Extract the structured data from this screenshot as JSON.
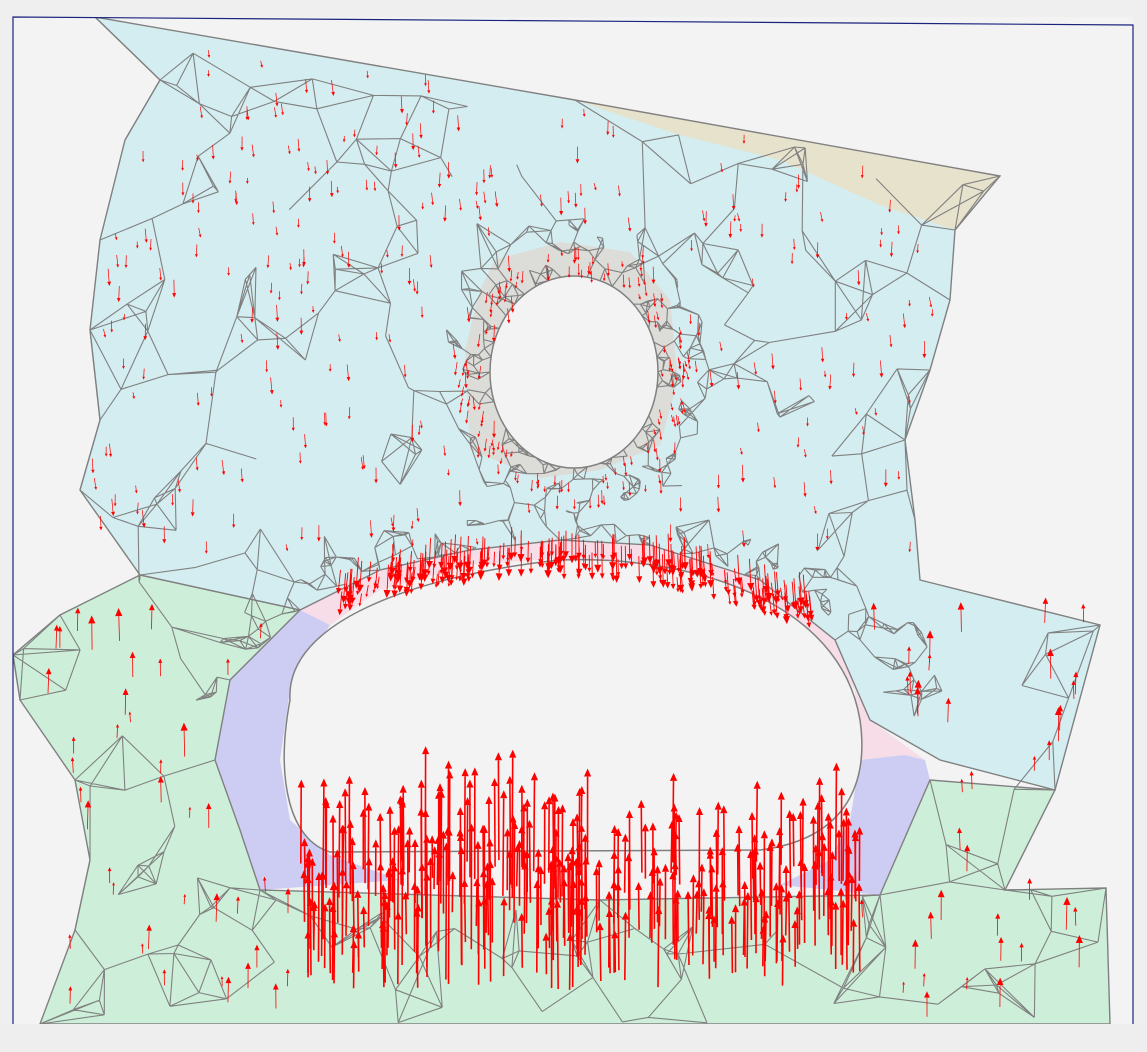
{
  "viewer": {
    "background_color": "#efefef",
    "canvas_fill": "#f3f3f3",
    "frame_color": "#1a237e",
    "mesh_edge_color": "#808080",
    "vector_color": "#ff0000",
    "bottom_strip_color": "#eeeeee"
  },
  "regions": [
    {
      "name": "upper-block",
      "color": "#d3edf0"
    },
    {
      "name": "upper-right-wedge",
      "color": "#e6e2cc"
    },
    {
      "name": "ring-around-hole",
      "color": "#dcdcd8"
    },
    {
      "name": "arch-band-pink",
      "color": "#f6dde8"
    },
    {
      "name": "arch-band-lavender",
      "color": "#cdcdf4"
    },
    {
      "name": "lower-block",
      "color": "#cdefd9"
    }
  ],
  "holes": [
    {
      "name": "small-circular-hole"
    },
    {
      "name": "large-arched-opening"
    }
  ],
  "vector_field": {
    "description_level": "force-vectors",
    "color": "#ff0000"
  }
}
